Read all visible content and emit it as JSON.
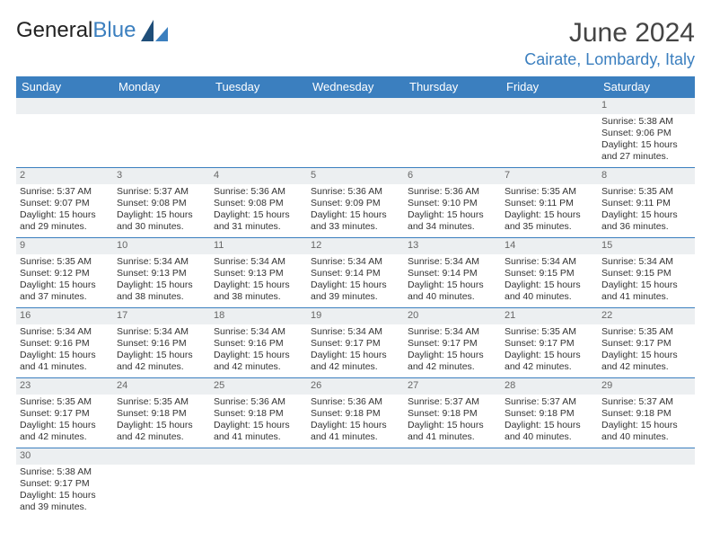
{
  "brand": {
    "name_a": "General",
    "name_b": "Blue"
  },
  "title": "June 2024",
  "location": "Cairate, Lombardy, Italy",
  "colors": {
    "accent": "#3b7fbf",
    "header_bg": "#3b7fbf",
    "daynum_bg": "#eceff1",
    "text": "#333333"
  },
  "weekdays": [
    "Sunday",
    "Monday",
    "Tuesday",
    "Wednesday",
    "Thursday",
    "Friday",
    "Saturday"
  ],
  "weeks": [
    [
      null,
      null,
      null,
      null,
      null,
      null,
      {
        "n": "1",
        "sr": "Sunrise: 5:38 AM",
        "ss": "Sunset: 9:06 PM",
        "d1": "Daylight: 15 hours",
        "d2": "and 27 minutes."
      }
    ],
    [
      {
        "n": "2",
        "sr": "Sunrise: 5:37 AM",
        "ss": "Sunset: 9:07 PM",
        "d1": "Daylight: 15 hours",
        "d2": "and 29 minutes."
      },
      {
        "n": "3",
        "sr": "Sunrise: 5:37 AM",
        "ss": "Sunset: 9:08 PM",
        "d1": "Daylight: 15 hours",
        "d2": "and 30 minutes."
      },
      {
        "n": "4",
        "sr": "Sunrise: 5:36 AM",
        "ss": "Sunset: 9:08 PM",
        "d1": "Daylight: 15 hours",
        "d2": "and 31 minutes."
      },
      {
        "n": "5",
        "sr": "Sunrise: 5:36 AM",
        "ss": "Sunset: 9:09 PM",
        "d1": "Daylight: 15 hours",
        "d2": "and 33 minutes."
      },
      {
        "n": "6",
        "sr": "Sunrise: 5:36 AM",
        "ss": "Sunset: 9:10 PM",
        "d1": "Daylight: 15 hours",
        "d2": "and 34 minutes."
      },
      {
        "n": "7",
        "sr": "Sunrise: 5:35 AM",
        "ss": "Sunset: 9:11 PM",
        "d1": "Daylight: 15 hours",
        "d2": "and 35 minutes."
      },
      {
        "n": "8",
        "sr": "Sunrise: 5:35 AM",
        "ss": "Sunset: 9:11 PM",
        "d1": "Daylight: 15 hours",
        "d2": "and 36 minutes."
      }
    ],
    [
      {
        "n": "9",
        "sr": "Sunrise: 5:35 AM",
        "ss": "Sunset: 9:12 PM",
        "d1": "Daylight: 15 hours",
        "d2": "and 37 minutes."
      },
      {
        "n": "10",
        "sr": "Sunrise: 5:34 AM",
        "ss": "Sunset: 9:13 PM",
        "d1": "Daylight: 15 hours",
        "d2": "and 38 minutes."
      },
      {
        "n": "11",
        "sr": "Sunrise: 5:34 AM",
        "ss": "Sunset: 9:13 PM",
        "d1": "Daylight: 15 hours",
        "d2": "and 38 minutes."
      },
      {
        "n": "12",
        "sr": "Sunrise: 5:34 AM",
        "ss": "Sunset: 9:14 PM",
        "d1": "Daylight: 15 hours",
        "d2": "and 39 minutes."
      },
      {
        "n": "13",
        "sr": "Sunrise: 5:34 AM",
        "ss": "Sunset: 9:14 PM",
        "d1": "Daylight: 15 hours",
        "d2": "and 40 minutes."
      },
      {
        "n": "14",
        "sr": "Sunrise: 5:34 AM",
        "ss": "Sunset: 9:15 PM",
        "d1": "Daylight: 15 hours",
        "d2": "and 40 minutes."
      },
      {
        "n": "15",
        "sr": "Sunrise: 5:34 AM",
        "ss": "Sunset: 9:15 PM",
        "d1": "Daylight: 15 hours",
        "d2": "and 41 minutes."
      }
    ],
    [
      {
        "n": "16",
        "sr": "Sunrise: 5:34 AM",
        "ss": "Sunset: 9:16 PM",
        "d1": "Daylight: 15 hours",
        "d2": "and 41 minutes."
      },
      {
        "n": "17",
        "sr": "Sunrise: 5:34 AM",
        "ss": "Sunset: 9:16 PM",
        "d1": "Daylight: 15 hours",
        "d2": "and 42 minutes."
      },
      {
        "n": "18",
        "sr": "Sunrise: 5:34 AM",
        "ss": "Sunset: 9:16 PM",
        "d1": "Daylight: 15 hours",
        "d2": "and 42 minutes."
      },
      {
        "n": "19",
        "sr": "Sunrise: 5:34 AM",
        "ss": "Sunset: 9:17 PM",
        "d1": "Daylight: 15 hours",
        "d2": "and 42 minutes."
      },
      {
        "n": "20",
        "sr": "Sunrise: 5:34 AM",
        "ss": "Sunset: 9:17 PM",
        "d1": "Daylight: 15 hours",
        "d2": "and 42 minutes."
      },
      {
        "n": "21",
        "sr": "Sunrise: 5:35 AM",
        "ss": "Sunset: 9:17 PM",
        "d1": "Daylight: 15 hours",
        "d2": "and 42 minutes."
      },
      {
        "n": "22",
        "sr": "Sunrise: 5:35 AM",
        "ss": "Sunset: 9:17 PM",
        "d1": "Daylight: 15 hours",
        "d2": "and 42 minutes."
      }
    ],
    [
      {
        "n": "23",
        "sr": "Sunrise: 5:35 AM",
        "ss": "Sunset: 9:17 PM",
        "d1": "Daylight: 15 hours",
        "d2": "and 42 minutes."
      },
      {
        "n": "24",
        "sr": "Sunrise: 5:35 AM",
        "ss": "Sunset: 9:18 PM",
        "d1": "Daylight: 15 hours",
        "d2": "and 42 minutes."
      },
      {
        "n": "25",
        "sr": "Sunrise: 5:36 AM",
        "ss": "Sunset: 9:18 PM",
        "d1": "Daylight: 15 hours",
        "d2": "and 41 minutes."
      },
      {
        "n": "26",
        "sr": "Sunrise: 5:36 AM",
        "ss": "Sunset: 9:18 PM",
        "d1": "Daylight: 15 hours",
        "d2": "and 41 minutes."
      },
      {
        "n": "27",
        "sr": "Sunrise: 5:37 AM",
        "ss": "Sunset: 9:18 PM",
        "d1": "Daylight: 15 hours",
        "d2": "and 41 minutes."
      },
      {
        "n": "28",
        "sr": "Sunrise: 5:37 AM",
        "ss": "Sunset: 9:18 PM",
        "d1": "Daylight: 15 hours",
        "d2": "and 40 minutes."
      },
      {
        "n": "29",
        "sr": "Sunrise: 5:37 AM",
        "ss": "Sunset: 9:18 PM",
        "d1": "Daylight: 15 hours",
        "d2": "and 40 minutes."
      }
    ],
    [
      {
        "n": "30",
        "sr": "Sunrise: 5:38 AM",
        "ss": "Sunset: 9:17 PM",
        "d1": "Daylight: 15 hours",
        "d2": "and 39 minutes."
      },
      null,
      null,
      null,
      null,
      null,
      null
    ]
  ]
}
